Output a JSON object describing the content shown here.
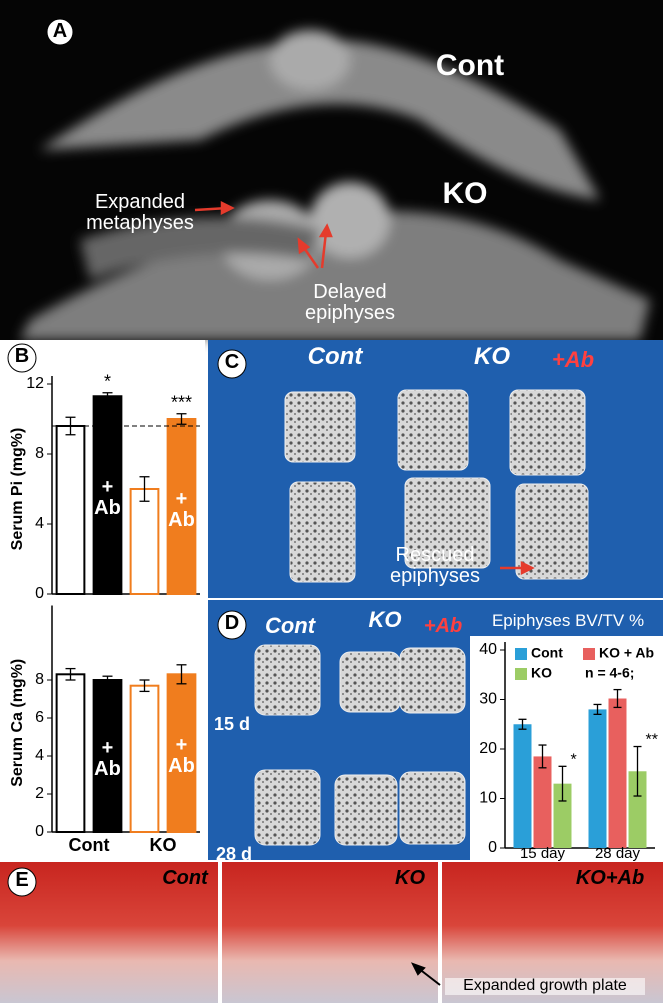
{
  "panels": {
    "A": {
      "label": "A",
      "cont": "Cont",
      "ko": "KO",
      "metaphyses": "Expanded metaphyses",
      "epiphyses": "Delayed epiphyses"
    },
    "B": {
      "label": "B"
    },
    "C": {
      "label": "C",
      "cont": "Cont",
      "ko": "KO",
      "ab": "+Ab",
      "rescued": "Rescued epiphyses"
    },
    "D": {
      "label": "D",
      "cont": "Cont",
      "ko": "KO",
      "ab": "+Ab",
      "day15": "15 d",
      "day28": "28 d"
    },
    "E": {
      "label": "E",
      "cont": "Cont",
      "ko": "KO",
      "ko_ab": "KO+Ab",
      "note": "Expanded growth plate"
    }
  },
  "chart_data": [
    {
      "type": "bar",
      "ylabel": "Serum Pi (mg%)",
      "categories": [
        null,
        "+ Ab",
        null,
        "+ Ab"
      ],
      "values": [
        9.6,
        11.3,
        6.0,
        10.0
      ],
      "errors": [
        0.5,
        0.2,
        0.7,
        0.3
      ],
      "significance": [
        null,
        "*",
        null,
        "***"
      ],
      "colors": [
        "#ffffff",
        "#000000",
        "#ffffff",
        "#f07d1e"
      ],
      "edge_colors": [
        "#000000",
        "#000000",
        "#f07d1e",
        "#f07d1e"
      ],
      "reference_line": 9.6,
      "ylim": [
        0,
        12
      ],
      "yticks": [
        0,
        4,
        8,
        12
      ]
    },
    {
      "type": "bar",
      "ylabel": "Serum Ca (mg%)",
      "categories": [
        null,
        "+ Ab",
        null,
        "+ Ab"
      ],
      "group_labels": [
        "Cont",
        "KO"
      ],
      "values": [
        8.3,
        8.0,
        7.7,
        8.3
      ],
      "errors": [
        0.3,
        0.2,
        0.3,
        0.5
      ],
      "colors": [
        "#ffffff",
        "#000000",
        "#ffffff",
        "#f07d1e"
      ],
      "edge_colors": [
        "#000000",
        "#000000",
        "#f07d1e",
        "#f07d1e"
      ],
      "ylim": [
        0,
        11.5
      ],
      "yticks": [
        0,
        2,
        4,
        6,
        8
      ]
    },
    {
      "type": "bar",
      "title": "Epiphyses BV/TV %",
      "categories": [
        "15 day",
        "28 day"
      ],
      "series": [
        {
          "name": "Cont",
          "color": "#2a9fd8",
          "values": [
            25,
            28
          ],
          "errors": [
            1,
            1
          ]
        },
        {
          "name": "KO + Ab",
          "color": "#e8605e",
          "values": [
            18.5,
            30.2
          ],
          "errors": [
            2.3,
            1.8
          ]
        },
        {
          "name": "KO",
          "color": "#9ccc65",
          "values": [
            13,
            15.5
          ],
          "errors": [
            3.5,
            5
          ],
          "significance": [
            "*",
            "**"
          ]
        }
      ],
      "note": "n = 4-6;",
      "ylim": [
        0,
        40
      ],
      "yticks": [
        0,
        10,
        20,
        30,
        40
      ]
    }
  ]
}
